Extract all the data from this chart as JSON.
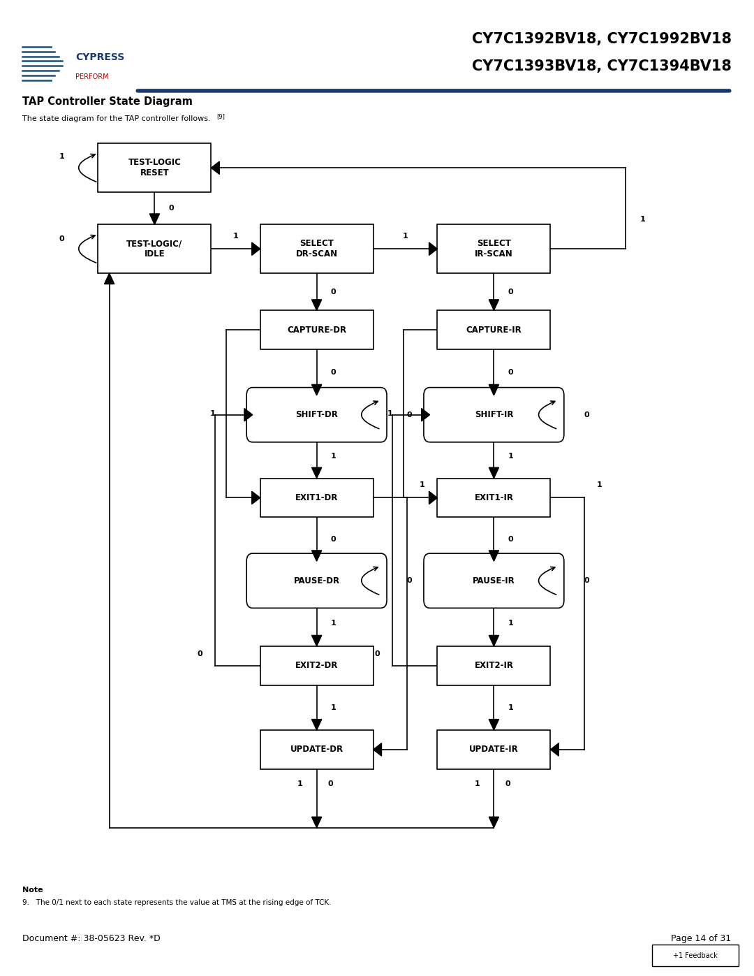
{
  "title_line1": "CY7C1392BV18, CY7C1992BV18",
  "title_line2": "CY7C1393BV18, CY7C1394BV18",
  "section_title": "TAP Controller State Diagram",
  "section_subtitle": "The state diagram for the TAP controller follows.",
  "note_label": "Note",
  "note_text": "9.   The 0/1 next to each state represents the value at TMS at the rising edge of TCK.",
  "doc_number": "Document #: 38-05623 Rev. *D",
  "page_number": "Page 14 of 31",
  "feedback_text": "+1 Feedback",
  "superscript": "[9]",
  "background_color": "#ffffff",
  "header_line_color": "#1a3a6e",
  "text_color": "#000000",
  "title_color": "#000000"
}
